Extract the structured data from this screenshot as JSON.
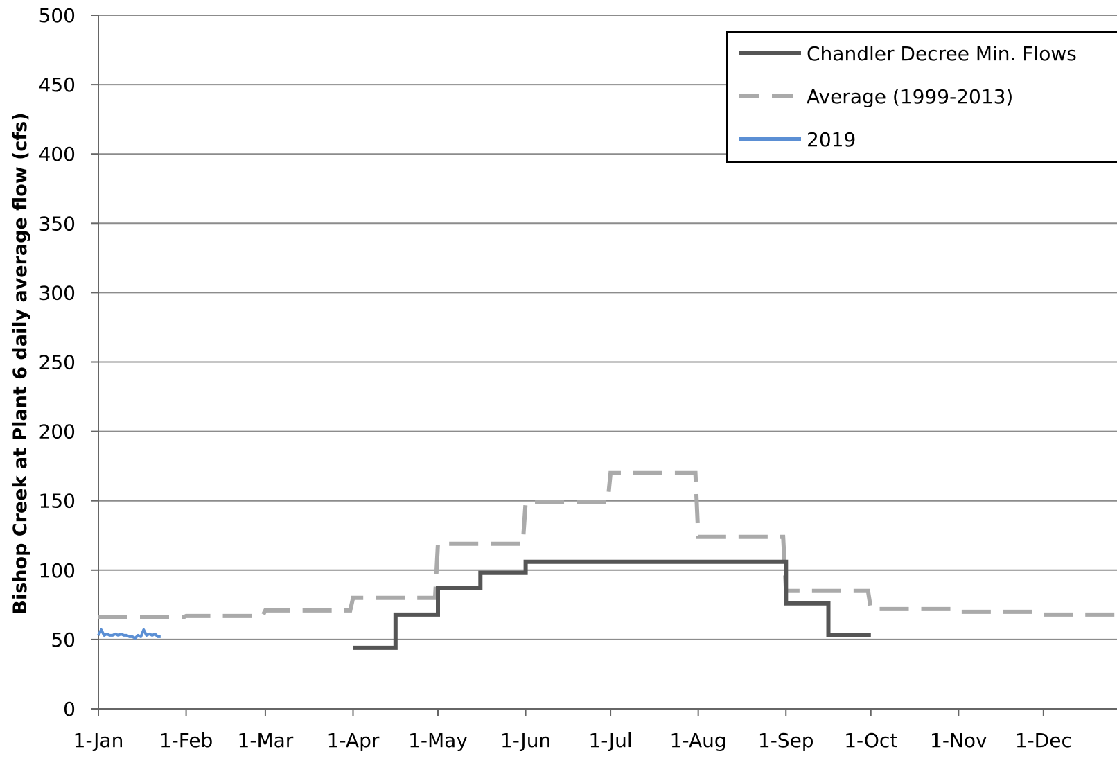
{
  "chart_data": {
    "type": "line",
    "ylabel": "Bishop Creek at Plant 6 daily average flow (cfs)",
    "xlabel": "",
    "ylim": [
      0,
      500
    ],
    "yticks": [
      0,
      50,
      100,
      150,
      200,
      250,
      300,
      350,
      400,
      450,
      500
    ],
    "xticks": [
      "1-Jan",
      "1-Feb",
      "1-Mar",
      "1-Apr",
      "1-May",
      "1-Jun",
      "1-Jul",
      "1-Aug",
      "1-Sep",
      "1-Oct",
      "1-Nov",
      "1-Dec"
    ],
    "grid": "horizontal",
    "legend_position": "top-right",
    "series": [
      {
        "name": "Chandler Decree Min. Flows",
        "style": "solid",
        "color": "#555555",
        "points": [
          [
            "1-Apr",
            44
          ],
          [
            "16-Apr",
            44
          ],
          [
            "16-Apr",
            68
          ],
          [
            "1-May",
            68
          ],
          [
            "1-May",
            87
          ],
          [
            "16-May",
            87
          ],
          [
            "16-May",
            98
          ],
          [
            "1-Jun",
            98
          ],
          [
            "1-Jun",
            106
          ],
          [
            "1-Sep",
            106
          ],
          [
            "1-Sep",
            76
          ],
          [
            "16-Sep",
            76
          ],
          [
            "16-Sep",
            53
          ],
          [
            "1-Oct",
            53
          ]
        ]
      },
      {
        "name": "Average (1999-2013)",
        "style": "dashed",
        "color": "#aaaaaa",
        "points": [
          [
            "1-Jan",
            66
          ],
          [
            "31-Jan",
            66
          ],
          [
            "1-Feb",
            67
          ],
          [
            "28-Feb",
            67
          ],
          [
            "1-Mar",
            71
          ],
          [
            "31-Mar",
            71
          ],
          [
            "1-Apr",
            80
          ],
          [
            "30-Apr",
            80
          ],
          [
            "1-May",
            119
          ],
          [
            "31-May",
            119
          ],
          [
            "1-Jun",
            149
          ],
          [
            "30-Jun",
            149
          ],
          [
            "1-Jul",
            170
          ],
          [
            "31-Jul",
            170
          ],
          [
            "1-Aug",
            124
          ],
          [
            "31-Aug",
            124
          ],
          [
            "1-Sep",
            85
          ],
          [
            "30-Sep",
            85
          ],
          [
            "1-Oct",
            72
          ],
          [
            "31-Oct",
            72
          ],
          [
            "1-Nov",
            70
          ],
          [
            "30-Nov",
            70
          ],
          [
            "1-Dec",
            68
          ],
          [
            "31-Dec",
            68
          ]
        ]
      },
      {
        "name": "2019",
        "style": "solid",
        "color": "#5b8fd4",
        "points": [
          [
            "1-Jan",
            53
          ],
          [
            "2-Jan",
            57
          ],
          [
            "3-Jan",
            53
          ],
          [
            "4-Jan",
            54
          ],
          [
            "5-Jan",
            53
          ],
          [
            "6-Jan",
            53
          ],
          [
            "7-Jan",
            54
          ],
          [
            "8-Jan",
            53
          ],
          [
            "9-Jan",
            54
          ],
          [
            "10-Jan",
            53
          ],
          [
            "11-Jan",
            53
          ],
          [
            "12-Jan",
            52
          ],
          [
            "13-Jan",
            52
          ],
          [
            "14-Jan",
            51
          ],
          [
            "15-Jan",
            53
          ],
          [
            "16-Jan",
            52
          ],
          [
            "17-Jan",
            57
          ],
          [
            "18-Jan",
            53
          ],
          [
            "19-Jan",
            54
          ],
          [
            "20-Jan",
            53
          ],
          [
            "21-Jan",
            54
          ],
          [
            "22-Jan",
            52
          ],
          [
            "23-Jan",
            52
          ]
        ]
      }
    ]
  }
}
